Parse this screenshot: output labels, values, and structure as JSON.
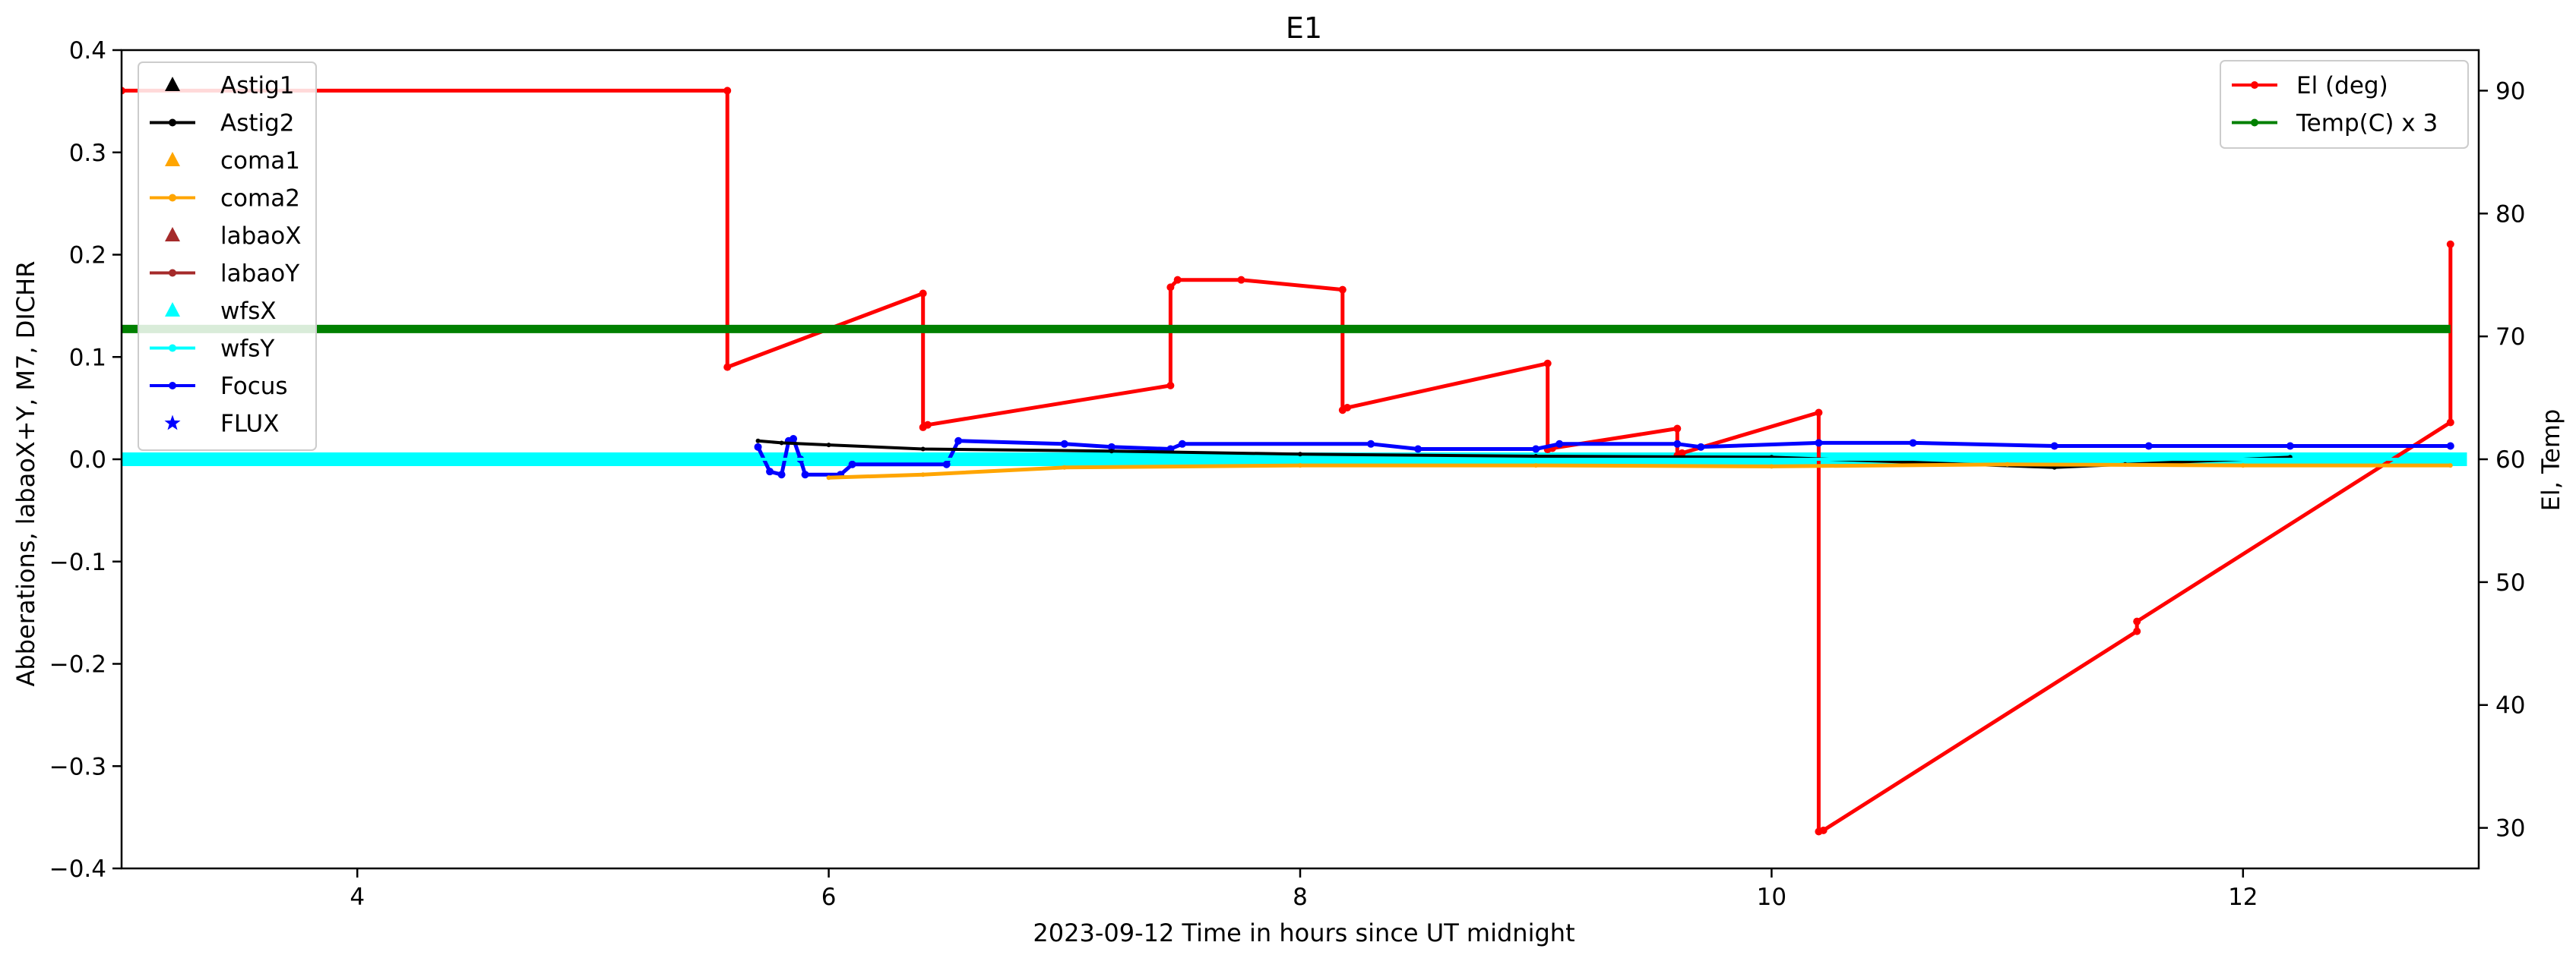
{
  "chart_data": {
    "type": "line",
    "title": "E1",
    "xlabel": "2023-09-12  Time in hours since UT midnight",
    "ylabel_left": "Abberations, labaoX+Y, M7, DICHR",
    "ylabel_right": "El, Temp",
    "xlim": [
      3.0,
      13.0
    ],
    "ylim_left": [
      -0.4,
      0.4
    ],
    "ylim_right": [
      26.7,
      93.3
    ],
    "xticks": [
      "4",
      "6",
      "8",
      "10",
      "12"
    ],
    "xtick_values": [
      4,
      6,
      8,
      10,
      12
    ],
    "yticks_left": [
      "0.4",
      "0.3",
      "0.2",
      "0.1",
      "0.0",
      "−0.1",
      "−0.2",
      "−0.3",
      "−0.4"
    ],
    "ytick_left_values": [
      0.4,
      0.3,
      0.2,
      0.1,
      0.0,
      -0.1,
      -0.2,
      -0.3,
      -0.4
    ],
    "yticks_right": [
      "90",
      "80",
      "70",
      "60",
      "50",
      "40",
      "30"
    ],
    "ytick_right_values": [
      90,
      80,
      70,
      60,
      50,
      40,
      30
    ],
    "grid": false,
    "legend_left": {
      "placement": "upper-left",
      "entries": [
        {
          "name": "Astig1",
          "color": "#000000",
          "marker": "triangle"
        },
        {
          "name": "Astig2",
          "color": "#000000",
          "marker": "line-dot"
        },
        {
          "name": "coma1",
          "color": "#ffa500",
          "marker": "triangle"
        },
        {
          "name": "coma2",
          "color": "#ffa500",
          "marker": "line-dot"
        },
        {
          "name": "labaoX",
          "color": "#a52a2a",
          "marker": "triangle"
        },
        {
          "name": "labaoY",
          "color": "#a52a2a",
          "marker": "line-dot"
        },
        {
          "name": "wfsX",
          "color": "#00ffff",
          "marker": "triangle"
        },
        {
          "name": "wfsY",
          "color": "#00ffff",
          "marker": "line-dot"
        },
        {
          "name": "Focus",
          "color": "#0000ff",
          "marker": "line-dot"
        },
        {
          "name": "FLUX",
          "color": "#0000ff",
          "marker": "star"
        }
      ]
    },
    "legend_right": {
      "placement": "upper-right",
      "entries": [
        {
          "name": "El (deg)",
          "color": "#ff0000",
          "marker": "line-dot"
        },
        {
          "name": "Temp(C) x 3",
          "color": "#008000",
          "marker": "line-dot"
        }
      ]
    },
    "series": [
      {
        "name": "El (deg)",
        "axis": "right",
        "color": "#ff0000",
        "x": [
          3.0,
          5.57,
          5.57,
          6.4,
          6.4,
          6.42,
          7.45,
          7.45,
          7.48,
          7.75,
          8.18,
          8.18,
          8.2,
          9.05,
          9.05,
          9.07,
          9.6,
          9.6,
          9.62,
          10.2,
          10.2,
          10.22,
          11.55,
          11.55,
          12.88,
          12.88
        ],
        "y": [
          90.0,
          90.0,
          67.5,
          73.5,
          62.6,
          62.8,
          66.0,
          74.0,
          74.6,
          74.6,
          73.8,
          64.0,
          64.2,
          67.8,
          60.8,
          60.9,
          62.5,
          60.3,
          60.5,
          63.8,
          29.7,
          29.8,
          46.0,
          46.8,
          63.0,
          77.5
        ]
      },
      {
        "name": "Temp(C) x 3",
        "axis": "right",
        "color": "#008000",
        "x": [
          3.0,
          12.88
        ],
        "y": [
          70.6,
          70.6
        ]
      },
      {
        "name": "Focus",
        "axis": "left",
        "color": "#0000ff",
        "x": [
          5.7,
          5.75,
          5.8,
          5.83,
          5.85,
          5.88,
          5.9,
          6.05,
          6.1,
          6.5,
          6.55,
          7.0,
          7.2,
          7.45,
          7.5,
          8.3,
          8.5,
          9.0,
          9.1,
          9.6,
          9.7,
          10.2,
          10.6,
          11.2,
          11.6,
          12.2,
          12.88
        ],
        "y": [
          0.012,
          -0.012,
          -0.015,
          0.018,
          0.02,
          0.0,
          -0.015,
          -0.015,
          -0.005,
          -0.005,
          0.018,
          0.015,
          0.012,
          0.01,
          0.015,
          0.015,
          0.01,
          0.01,
          0.015,
          0.015,
          0.012,
          0.016,
          0.016,
          0.013,
          0.013,
          0.013,
          0.013
        ]
      },
      {
        "name": "Astig2",
        "axis": "left",
        "color": "#000000",
        "x": [
          5.7,
          5.8,
          6.0,
          6.4,
          7.2,
          8.0,
          9.0,
          10.0,
          11.2,
          11.5,
          12.2
        ],
        "y": [
          0.018,
          0.016,
          0.014,
          0.01,
          0.008,
          0.005,
          0.003,
          0.002,
          -0.008,
          -0.005,
          0.002
        ]
      },
      {
        "name": "coma2",
        "axis": "left",
        "color": "#ffa500",
        "x": [
          6.0,
          6.4,
          7.0,
          8.0,
          9.0,
          10.0,
          11.0,
          12.0,
          12.88
        ],
        "y": [
          -0.018,
          -0.015,
          -0.008,
          -0.006,
          -0.006,
          -0.007,
          -0.005,
          -0.006,
          -0.006
        ]
      },
      {
        "name": "wfsY",
        "axis": "left",
        "color": "#00ffff",
        "x": [
          3.0,
          12.95
        ],
        "y": [
          0.0,
          0.0
        ]
      }
    ]
  }
}
